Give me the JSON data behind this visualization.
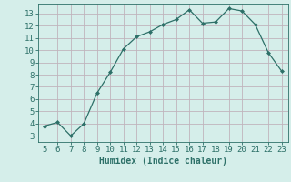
{
  "x": [
    5,
    6,
    7,
    8,
    9,
    10,
    11,
    12,
    13,
    14,
    15,
    16,
    17,
    18,
    19,
    20,
    21,
    22,
    23
  ],
  "y": [
    3.8,
    4.1,
    3.0,
    4.0,
    6.5,
    8.2,
    10.1,
    11.1,
    11.5,
    12.1,
    12.5,
    13.3,
    12.2,
    12.3,
    13.4,
    13.2,
    12.1,
    9.8,
    8.3
  ],
  "line_color": "#2d7068",
  "bg_color": "#d5eeea",
  "grid_color": "#c0b4bc",
  "xlabel": "Humidex (Indice chaleur)",
  "xlabel_fontsize": 7,
  "tick_fontsize": 6.5,
  "xlim": [
    4.5,
    23.5
  ],
  "ylim": [
    2.5,
    13.8
  ],
  "yticks": [
    3,
    4,
    5,
    6,
    7,
    8,
    9,
    10,
    11,
    12,
    13
  ],
  "xticks": [
    5,
    6,
    7,
    8,
    9,
    10,
    11,
    12,
    13,
    14,
    15,
    16,
    17,
    18,
    19,
    20,
    21,
    22,
    23
  ]
}
